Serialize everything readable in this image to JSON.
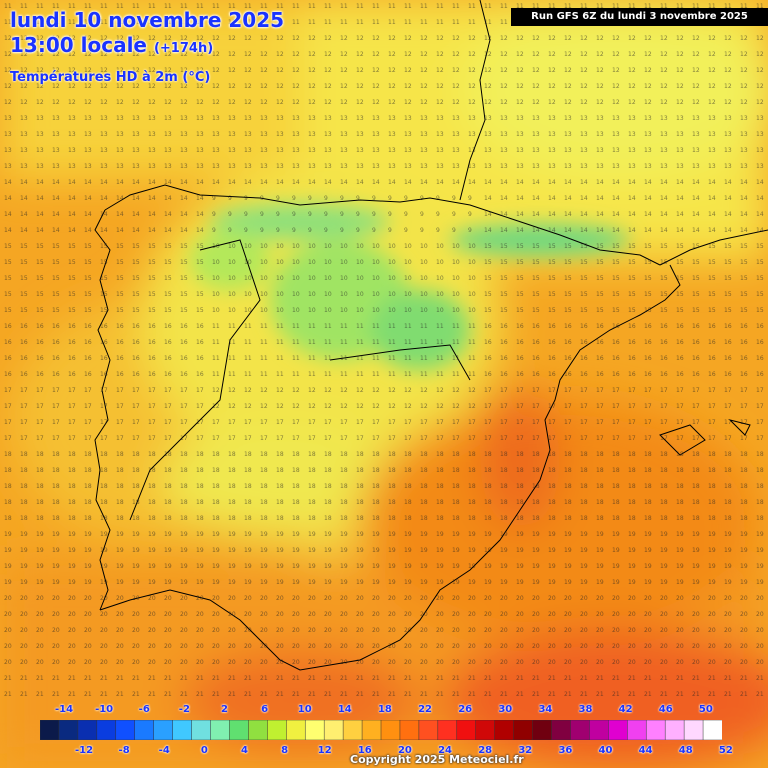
{
  "header": {
    "date": "lundi 10 novembre 2025",
    "time": "13:00 locale",
    "lead": "(+174h)",
    "parameter": "Températures HD à 2m (°C)",
    "run": "Run GFS 6Z du lundi 3 novembre 2025"
  },
  "legend": {
    "top_labels": [
      "-14",
      "-10",
      "-6",
      "-2",
      "2",
      "6",
      "10",
      "14",
      "18",
      "22",
      "26",
      "30",
      "34",
      "38",
      "42",
      "46",
      "50"
    ],
    "bottom_labels": [
      "-12",
      "-8",
      "-4",
      "0",
      "4",
      "8",
      "12",
      "16",
      "20",
      "24",
      "28",
      "32",
      "36",
      "40",
      "44",
      "48",
      "52"
    ],
    "colors": [
      "#0b1a4a",
      "#0a2a80",
      "#0a2fb0",
      "#0a3de0",
      "#1050ff",
      "#1a7aff",
      "#2aa0ff",
      "#40c8ff",
      "#70e0e0",
      "#80f0b0",
      "#60e070",
      "#90e040",
      "#c0f030",
      "#f0f040",
      "#ffff70",
      "#ffef70",
      "#ffd040",
      "#ffb020",
      "#ff9010",
      "#ff7010",
      "#ff5020",
      "#ff3020",
      "#f01010",
      "#d00808",
      "#b00000",
      "#900000",
      "#700010",
      "#800040",
      "#a00070",
      "#c000a0",
      "#e000d0",
      "#f040f0",
      "#ff80ff",
      "#ffb0ff",
      "#ffd8ff",
      "#ffffff"
    ]
  },
  "copyright": "Copyright 2025 Meteociel.fr"
}
